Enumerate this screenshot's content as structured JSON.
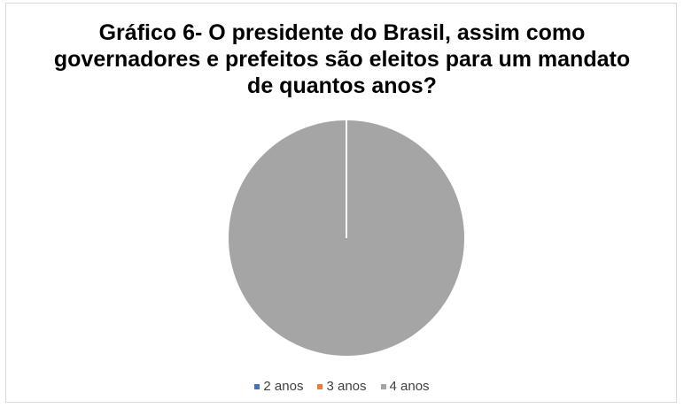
{
  "chart_data": {
    "type": "pie",
    "title": "Gráfico  6- O presidente do Brasil, assim como governadores e prefeitos são eleitos para um mandato de quantos anos?",
    "categories": [
      "2 anos",
      "3 anos",
      "4 anos"
    ],
    "values": [
      0,
      0,
      100
    ],
    "colors": [
      "#4472c4",
      "#ed7d31",
      "#a5a5a5"
    ],
    "legend_position": "bottom"
  }
}
